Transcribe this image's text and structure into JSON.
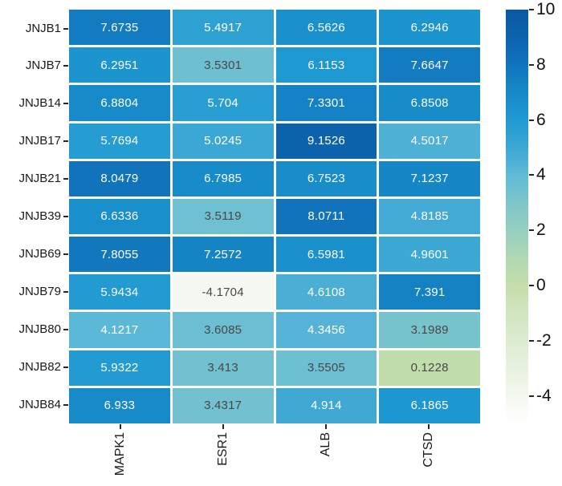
{
  "chart_data": {
    "type": "heatmap",
    "title": "",
    "rows": [
      "JNJB1",
      "JNJB7",
      "JNJB14",
      "JNJB17",
      "JNJB21",
      "JNJB39",
      "JNJB69",
      "JNJB79",
      "JNJB80",
      "JNJB82",
      "JNJB84"
    ],
    "columns": [
      "MAPK1",
      "ESR1",
      "ALB",
      "CTSD"
    ],
    "values": [
      [
        "7.6735",
        "5.4917",
        "6.5626",
        "6.2946"
      ],
      [
        "6.2951",
        "3.5301",
        "6.1153",
        "7.6647"
      ],
      [
        "6.8804",
        "5.704",
        "7.3301",
        "6.8508"
      ],
      [
        "5.7694",
        "5.0245",
        "9.1526",
        "4.5017"
      ],
      [
        "8.0479",
        "6.7985",
        "6.7523",
        "7.1237"
      ],
      [
        "6.6336",
        "3.5119",
        "8.0711",
        "4.8185"
      ],
      [
        "7.8055",
        "7.2572",
        "6.5981",
        "4.9601"
      ],
      [
        "5.9434",
        "-4.1704",
        "4.6108",
        "7.391"
      ],
      [
        "4.1217",
        "3.6085",
        "4.3456",
        "3.1989"
      ],
      [
        "5.9322",
        "3.413",
        "3.5505",
        "0.1228"
      ],
      [
        "6.933",
        "3.4317",
        "4.914",
        "6.1865"
      ]
    ],
    "vmin": -5,
    "vmax": 10,
    "colorbar_ticks": [
      "10",
      "8",
      "6",
      "4",
      "2",
      "0",
      "-2",
      "-4"
    ],
    "colormap": [
      {
        "v": -5,
        "c": "#ffffff"
      },
      {
        "v": -4,
        "c": "#f3f8ee"
      },
      {
        "v": -2,
        "c": "#dcecd0"
      },
      {
        "v": -1,
        "c": "#d1e5bf"
      },
      {
        "v": 0,
        "c": "#c5deab"
      },
      {
        "v": 1,
        "c": "#b0d8b3"
      },
      {
        "v": 2,
        "c": "#95cfc1"
      },
      {
        "v": 3,
        "c": "#7ec6cb"
      },
      {
        "v": 4,
        "c": "#60bad7"
      },
      {
        "v": 5,
        "c": "#3ca7d4"
      },
      {
        "v": 6,
        "c": "#1f9ad2"
      },
      {
        "v": 7,
        "c": "#1689c8"
      },
      {
        "v": 8,
        "c": "#1174bb"
      },
      {
        "v": 9,
        "c": "#0c64ad"
      },
      {
        "v": 10,
        "c": "#0a58a3"
      }
    ],
    "annotation_text_color_high": "#ffffff",
    "annotation_text_color_low": "#484848",
    "annotation_text_threshold": 4,
    "axis_tick_color": "#262626",
    "legend_position": "right",
    "grid_line_color": "#ffffff"
  }
}
